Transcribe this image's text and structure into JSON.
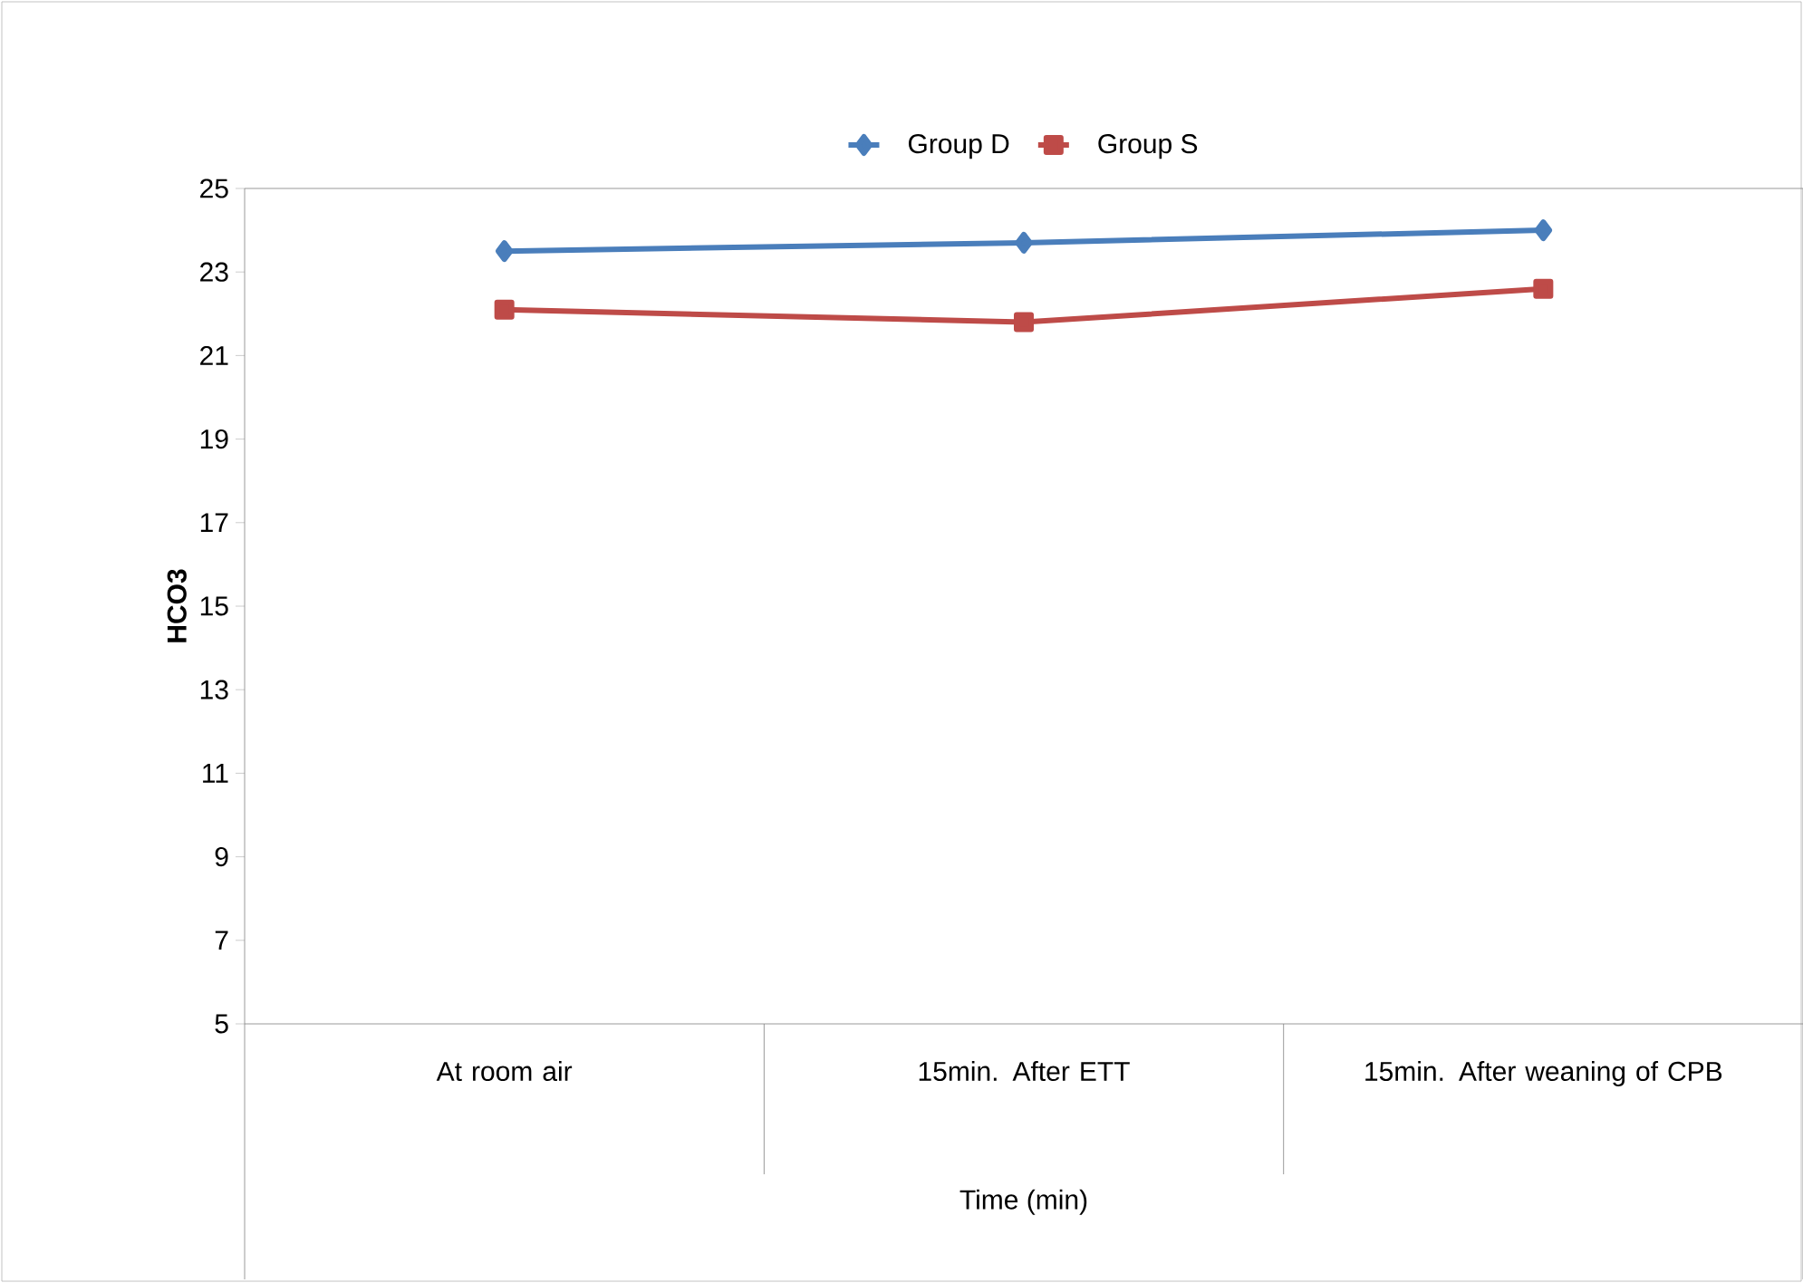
{
  "chart_data": {
    "type": "line",
    "xlabel": "Time (min)",
    "ylabel": "HCO3",
    "categories": [
      "At room air",
      "15min. After ETT",
      "15min. After weaning of CPB"
    ],
    "series": [
      {
        "name": "Group D",
        "color": "#4a7ebb",
        "marker": "diamond",
        "values": [
          23.5,
          23.7,
          24.0
        ]
      },
      {
        "name": "Group S",
        "color": "#be4b48",
        "marker": "square",
        "values": [
          22.1,
          21.8,
          22.6
        ]
      }
    ],
    "ylim": [
      5,
      25
    ],
    "yticks": [
      5,
      7,
      9,
      11,
      13,
      15,
      17,
      19,
      21,
      23,
      25
    ],
    "legend": "top",
    "grid": false
  }
}
